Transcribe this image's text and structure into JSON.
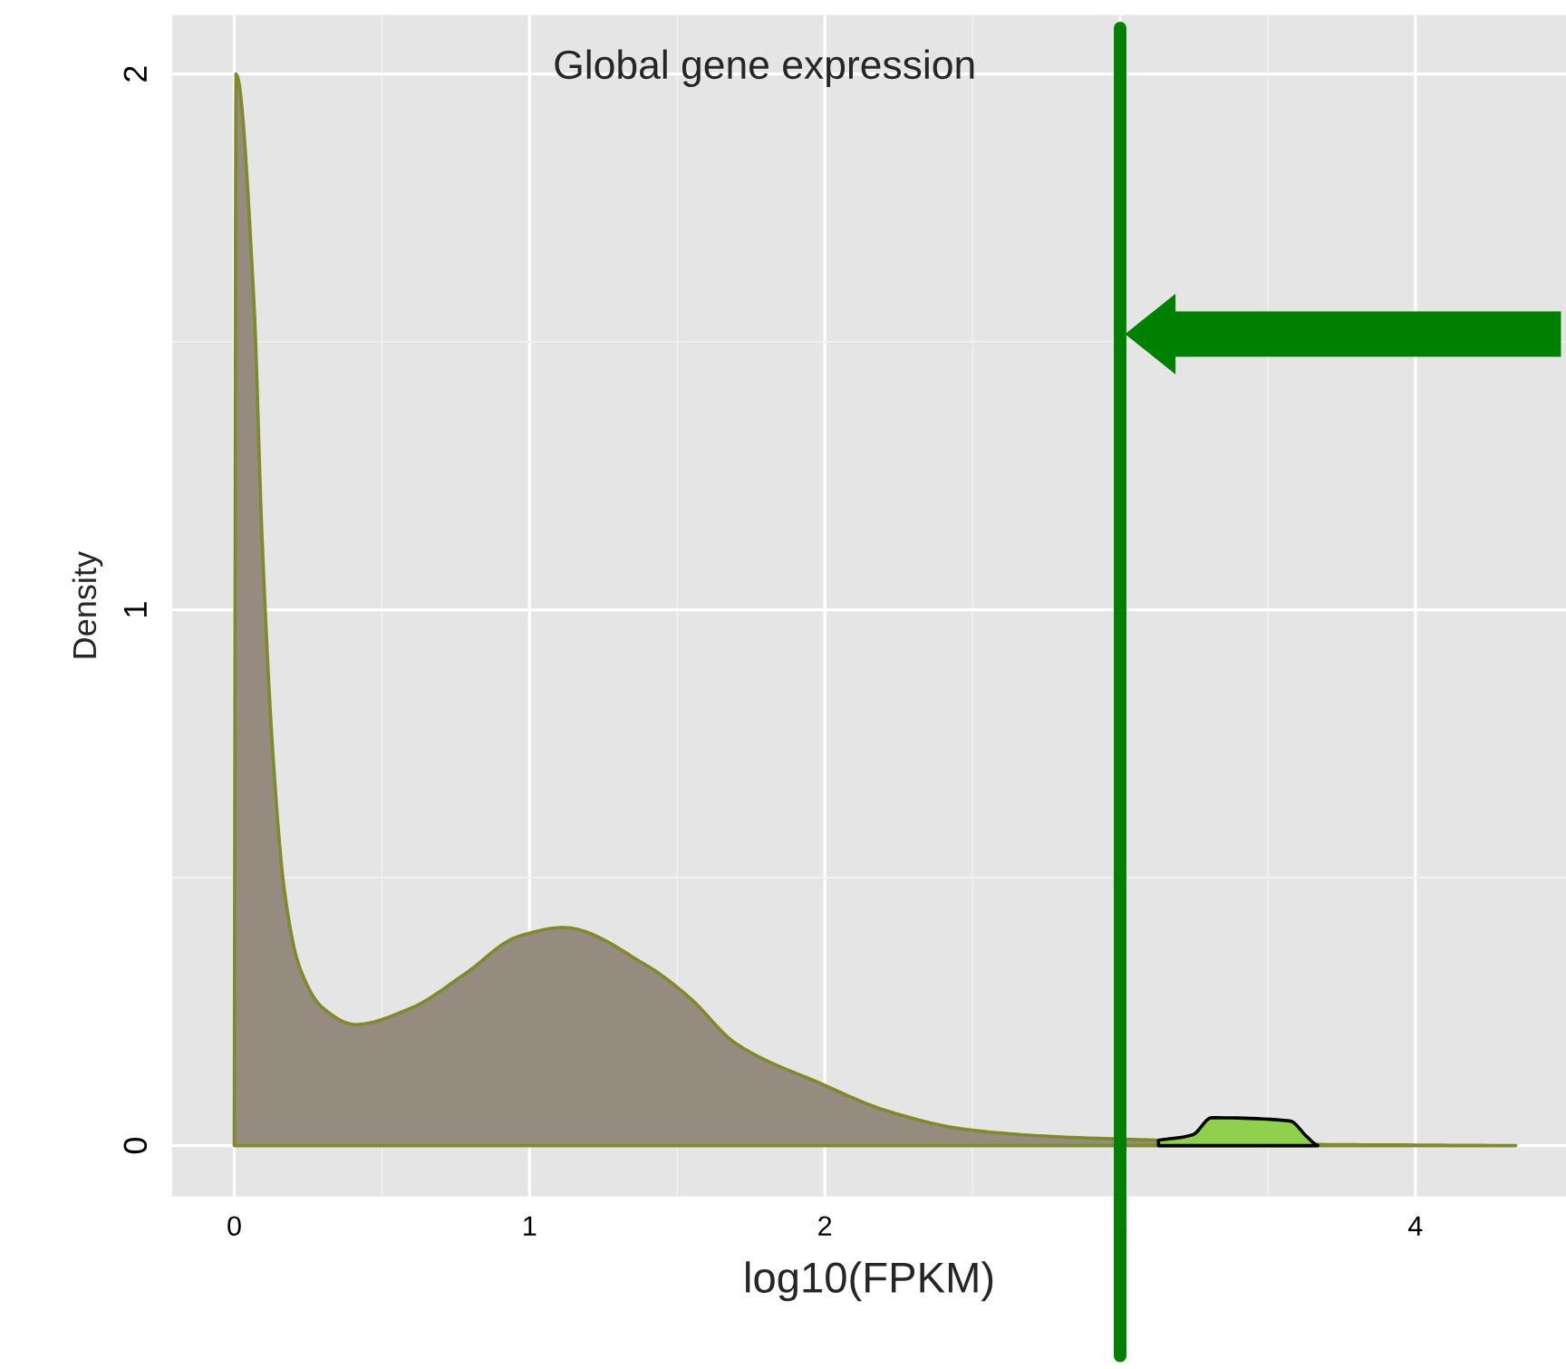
{
  "chart_data": {
    "type": "area",
    "title": "Global gene expression",
    "xlabel": "log10(FPKM)",
    "ylabel": "Density",
    "xlim": [
      -0.21,
      4.51
    ],
    "ylim": [
      -0.095,
      2.11
    ],
    "xticks": [
      0,
      1,
      2,
      3,
      4
    ],
    "yticks": [
      0,
      1,
      2
    ],
    "grid": true,
    "series": [
      {
        "color": "#958b7f",
        "x": [
          0,
          0.006,
          0.067,
          0.093,
          0.131,
          0.17,
          0.22,
          0.3,
          0.41,
          0.6,
          0.78,
          0.96,
          1.115,
          1.4,
          1.54,
          1.7,
          1.99,
          2.215,
          2.48,
          2.77,
          3.13,
          3.5,
          4.0,
          4.34
        ],
        "values": [
          0,
          2.0,
          1.57,
          1.15,
          0.73,
          0.475,
          0.335,
          0.257,
          0.226,
          0.257,
          0.32,
          0.39,
          0.407,
          0.335,
          0.277,
          0.19,
          0.115,
          0.064,
          0.03,
          0.017,
          0.01,
          0.003,
          0.001,
          0
        ]
      },
      {
        "color": "#8fd14f",
        "x": [
          3.13,
          3.245,
          3.31,
          3.575,
          3.63,
          3.66,
          3.67
        ],
        "values": [
          0.01,
          0.02,
          0.052,
          0.046,
          0.018,
          0.003,
          0
        ]
      }
    ],
    "ref_lines": [
      {
        "axis": "x",
        "value": 3,
        "color": "#008000"
      }
    ]
  }
}
